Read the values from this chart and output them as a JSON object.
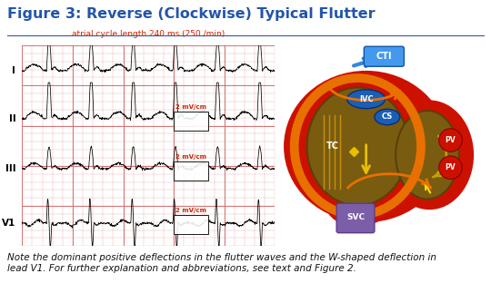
{
  "title": "Figure 3: Reverse (Clockwise) Typical Flutter",
  "title_color": "#2255aa",
  "title_fontsize": 11.5,
  "ecg_label": "atrial cycle length 240 ms (250 /min)",
  "ecg_label_color": "#cc2200",
  "lead_labels": [
    "I",
    "II",
    "III",
    "V1"
  ],
  "caption": "Note the dominant positive deflections in the flutter waves and the W-shaped deflection in\nlead V1. For further explanation and abbreviations, see text and Figure 2.",
  "caption_fontsize": 7.5,
  "bg_color": "#ffffff",
  "ecg_grid_minor": "#e8a0a0",
  "ecg_grid_major": "#d06060",
  "ecg_bg_color": "#fce8e8",
  "heart_red": "#cc1100",
  "heart_ra_fill": "#8b6914",
  "heart_ra_border": "#c8900a",
  "heart_la_fill": "#9a7510",
  "heart_orange_ring": "#e87000",
  "svc_color": "#7b5ea7",
  "ivc_color": "#1a5fb4",
  "cs_color": "#1a5fb4",
  "cti_color": "#3388dd",
  "pv_color": "#cc1100",
  "yellow_arrow": "#e8c000"
}
